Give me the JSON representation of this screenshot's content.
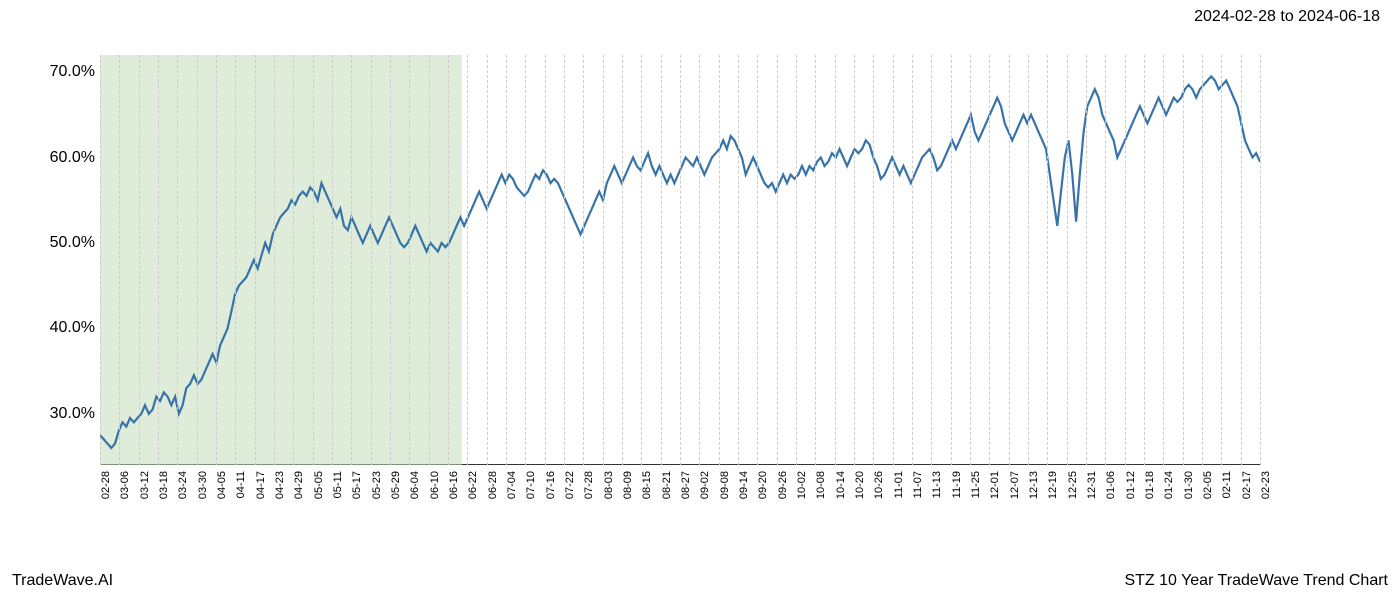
{
  "header": {
    "date_range": "2024-02-28 to 2024-06-18"
  },
  "footer": {
    "left": "TradeWave.AI",
    "right": "STZ 10 Year TradeWave Trend Chart"
  },
  "chart": {
    "type": "line",
    "background_color": "#ffffff",
    "grid_color": "#cccccc",
    "line_color": "#3773a8",
    "line_width": 2.2,
    "highlight_fill": "rgba(195,220,185,0.55)",
    "y_axis": {
      "min": 24,
      "max": 72,
      "ticks": [
        30,
        40,
        50,
        60,
        70
      ],
      "tick_format_suffix": ".0%",
      "label_fontsize": 16,
      "label_color": "#000000"
    },
    "x_axis": {
      "labels": [
        "02-28",
        "03-06",
        "03-12",
        "03-18",
        "03-24",
        "03-30",
        "04-05",
        "04-11",
        "04-17",
        "04-23",
        "04-29",
        "05-05",
        "05-11",
        "05-17",
        "05-23",
        "05-29",
        "06-04",
        "06-10",
        "06-16",
        "06-22",
        "06-28",
        "07-04",
        "07-10",
        "07-16",
        "07-22",
        "07-28",
        "08-03",
        "08-09",
        "08-15",
        "08-21",
        "08-27",
        "09-02",
        "09-08",
        "09-14",
        "09-20",
        "09-26",
        "10-02",
        "10-08",
        "10-14",
        "10-20",
        "10-26",
        "11-01",
        "11-07",
        "11-13",
        "11-19",
        "11-25",
        "12-01",
        "12-07",
        "12-13",
        "12-19",
        "12-25",
        "12-31",
        "01-06",
        "01-12",
        "01-18",
        "01-24",
        "01-30",
        "02-05",
        "02-11",
        "02-17",
        "02-23"
      ],
      "label_fontsize": 11,
      "label_color": "#000000",
      "rotation": -90
    },
    "highlight_region": {
      "start_index": 0,
      "end_index": 18.7
    },
    "series": {
      "values": [
        27.5,
        27,
        26.5,
        26,
        26.5,
        28,
        29,
        28.5,
        29.5,
        29,
        29.5,
        30,
        31,
        30,
        30.5,
        32,
        31.5,
        32.5,
        32,
        31,
        32,
        30,
        31,
        33,
        33.5,
        34.5,
        33.5,
        34,
        35,
        36,
        37,
        36,
        38,
        39,
        40,
        42,
        44,
        45,
        45.5,
        46,
        47,
        48,
        47,
        48.5,
        50,
        49,
        51,
        52,
        53,
        53.5,
        54,
        55,
        54.5,
        55.5,
        56,
        55.5,
        56.5,
        56,
        55,
        57,
        56,
        55,
        54,
        53,
        54,
        52,
        51.5,
        53,
        52,
        51,
        50,
        51,
        52,
        51,
        50,
        51,
        52,
        53,
        52,
        51,
        50,
        49.5,
        50,
        51,
        52,
        51,
        50,
        49,
        50,
        49.5,
        49,
        50,
        49.5,
        50,
        51,
        52,
        53,
        52,
        53,
        54,
        55,
        56,
        55,
        54,
        55,
        56,
        57,
        58,
        57,
        58,
        57.5,
        56.5,
        56,
        55.5,
        56,
        57,
        58,
        57.5,
        58.5,
        58,
        57,
        57.5,
        57,
        56,
        55,
        54,
        53,
        52,
        51,
        52,
        53,
        54,
        55,
        56,
        55,
        57,
        58,
        59,
        58,
        57,
        58,
        59,
        60,
        59,
        58.5,
        59.5,
        60.5,
        59,
        58,
        59,
        58,
        57,
        58,
        57,
        58,
        59,
        60,
        59.5,
        59,
        60,
        59,
        58,
        59,
        60,
        60.5,
        61,
        62,
        61,
        62.5,
        62,
        61,
        60,
        58,
        59,
        60,
        59,
        58,
        57,
        56.5,
        57,
        56,
        57,
        58,
        57,
        58,
        57.5,
        58,
        59,
        58,
        59,
        58.5,
        59.5,
        60,
        59,
        59.5,
        60.5,
        60,
        61,
        60,
        59,
        60,
        61,
        60.5,
        61,
        62,
        61.5,
        60,
        59,
        57.5,
        58,
        59,
        60,
        59,
        58,
        59,
        58,
        57,
        58,
        59,
        60,
        60.5,
        61,
        60,
        58.5,
        59,
        60,
        61,
        62,
        61,
        62,
        63,
        64,
        65,
        63,
        62,
        63,
        64,
        65,
        66,
        67,
        66,
        64,
        63,
        62,
        63,
        64,
        65,
        64,
        65,
        64,
        63,
        62,
        61,
        58,
        55,
        52,
        56,
        60,
        62,
        58,
        52.5,
        58,
        63,
        66,
        67,
        68,
        67,
        65,
        64,
        63,
        62,
        60,
        61,
        62,
        63,
        64,
        65,
        66,
        65,
        64,
        65,
        66,
        67,
        66,
        65,
        66,
        67,
        66.5,
        67,
        68,
        68.5,
        68,
        67,
        68,
        68.5,
        69,
        69.5,
        69,
        68,
        68.5,
        69,
        68,
        67,
        66,
        64,
        62,
        61,
        60,
        60.5,
        59.5
      ]
    }
  }
}
